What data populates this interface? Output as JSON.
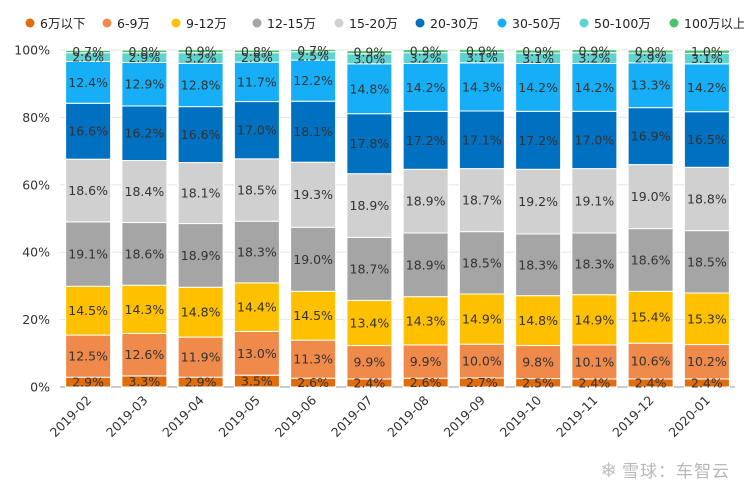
{
  "chart_data": {
    "type": "bar",
    "stacked": true,
    "percent": true,
    "categories": [
      "2019-02",
      "2019-03",
      "2019-04",
      "2019-05",
      "2019-06",
      "2019-07",
      "2019-08",
      "2019-09",
      "2019-10",
      "2019-11",
      "2019-12",
      "2020-01"
    ],
    "ylim": [
      0,
      100
    ],
    "yticks": [
      "0%",
      "20%",
      "40%",
      "60%",
      "80%",
      "100%"
    ],
    "legend_position": "top",
    "series": [
      {
        "name": "6万以下",
        "color": "#e36c0a",
        "values": [
          2.9,
          3.3,
          2.9,
          3.5,
          2.6,
          2.4,
          2.6,
          2.7,
          2.5,
          2.4,
          2.4,
          2.4
        ],
        "labels": [
          "2.9%",
          "3.3%",
          "2.9%",
          "3.5%",
          "2.6%",
          "2.4%",
          "2.6%",
          "2.7%",
          "2.5%",
          "2.4%",
          "2.4%",
          "2.4%"
        ]
      },
      {
        "name": "6-9万",
        "color": "#f08a4b",
        "values": [
          12.5,
          12.6,
          11.9,
          13.0,
          11.3,
          9.9,
          9.9,
          10.0,
          9.8,
          10.1,
          10.6,
          10.2
        ],
        "labels": [
          "12.5%",
          "12.6%",
          "11.9%",
          "13.0%",
          "11.3%",
          "9.9%",
          "9.9%",
          "10.0%",
          "9.8%",
          "10.1%",
          "10.6%",
          "10.2%"
        ]
      },
      {
        "name": "9-12万",
        "color": "#ffc000",
        "values": [
          14.5,
          14.3,
          14.8,
          14.4,
          14.5,
          13.4,
          14.3,
          14.9,
          14.8,
          14.9,
          15.4,
          15.3
        ],
        "labels": [
          "14.5%",
          "14.3%",
          "14.8%",
          "14.4%",
          "14.5%",
          "13.4%",
          "14.3%",
          "14.9%",
          "14.8%",
          "14.9%",
          "15.4%",
          "15.3%"
        ]
      },
      {
        "name": "12-15万",
        "color": "#a5a5a5",
        "values": [
          19.1,
          18.6,
          18.9,
          18.3,
          19.0,
          18.7,
          18.9,
          18.5,
          18.3,
          18.3,
          18.6,
          18.5
        ],
        "labels": [
          "19.1%",
          "18.6%",
          "18.9%",
          "18.3%",
          "19.0%",
          "18.7%",
          "18.9%",
          "18.5%",
          "18.3%",
          "18.3%",
          "18.6%",
          "18.5%"
        ]
      },
      {
        "name": "15-20万",
        "color": "#d0d0d0",
        "values": [
          18.6,
          18.4,
          18.1,
          18.5,
          19.3,
          18.9,
          18.9,
          18.7,
          19.2,
          19.1,
          19.0,
          18.8
        ],
        "labels": [
          "18.6%",
          "18.4%",
          "18.1%",
          "18.5%",
          "19.3%",
          "18.9%",
          "18.9%",
          "18.7%",
          "19.2%",
          "19.1%",
          "19.0%",
          "18.8%"
        ]
      },
      {
        "name": "20-30万",
        "color": "#0070c0",
        "values": [
          16.6,
          16.2,
          16.6,
          17.0,
          18.1,
          17.8,
          17.2,
          17.1,
          17.2,
          17.0,
          16.9,
          16.5
        ],
        "labels": [
          "16.6%",
          "16.2%",
          "16.6%",
          "17.0%",
          "18.1%",
          "17.8%",
          "17.2%",
          "17.1%",
          "17.2%",
          "17.0%",
          "16.9%",
          "16.5%"
        ]
      },
      {
        "name": "30-50万",
        "color": "#16aef6",
        "values": [
          12.4,
          12.9,
          12.8,
          11.7,
          12.2,
          14.8,
          14.2,
          14.3,
          14.2,
          14.2,
          13.3,
          14.2
        ],
        "labels": [
          "12.4%",
          "12.9%",
          "12.8%",
          "11.7%",
          "12.2%",
          "14.8%",
          "14.2%",
          "14.3%",
          "14.2%",
          "14.2%",
          "13.3%",
          "14.2%"
        ]
      },
      {
        "name": "50-100万",
        "color": "#5fd3d0",
        "values": [
          2.6,
          2.9,
          3.2,
          2.8,
          2.5,
          3.0,
          3.2,
          3.1,
          3.1,
          3.2,
          2.9,
          3.1
        ],
        "labels": [
          "2.6%",
          "2.9%",
          "3.2%",
          "2.8%",
          "2.5%",
          "3.0%",
          "3.2%",
          "3.1%",
          "3.1%",
          "3.2%",
          "2.9%",
          "3.1%"
        ]
      },
      {
        "name": "100万以上",
        "color": "#4cc26c",
        "values": [
          0.7,
          0.8,
          0.9,
          0.8,
          0.7,
          0.9,
          0.9,
          0.9,
          0.9,
          0.9,
          0.9,
          1.0
        ],
        "labels": [
          "0.7%",
          "0.8%",
          "0.9%",
          "0.8%",
          "0.7%",
          "0.9%",
          "0.9%",
          "0.9%",
          "0.9%",
          "0.9%",
          "0.9%",
          "1.0%"
        ]
      }
    ]
  },
  "watermark": {
    "icon": "snowball-icon",
    "text": "雪球：车智云"
  }
}
